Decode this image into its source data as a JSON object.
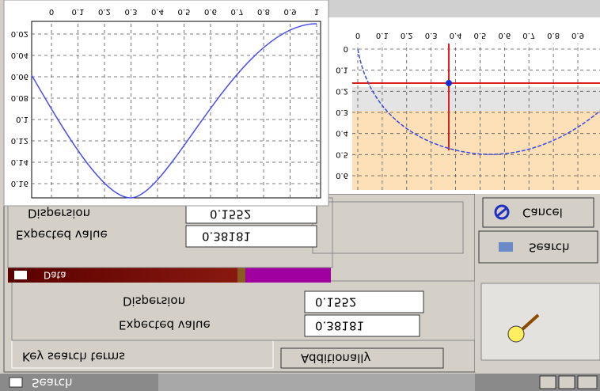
{
  "window_title": "Search",
  "tabs": [
    "Key search terms",
    "Additionally"
  ],
  "main_panel": {
    "expected_value_label": "Expected value",
    "expected_value": 0.38181,
    "dispersion_label": "Dispersion",
    "dispersion": 0.1552
  },
  "data_bar": {
    "label": "Data"
  },
  "results_panel": {
    "expected_value_label": "Expected value",
    "expected_value": 0.38181,
    "dispersion_label": "Dispersion",
    "dispersion": 0.1552
  },
  "buttons": {
    "cancel": "Cancel",
    "search": "Search"
  },
  "left_plot": {
    "xticks": [
      0,
      0.1,
      0.2,
      0.3,
      0.4,
      0.5,
      0.6,
      0.7,
      0.8,
      0.9,
      1
    ],
    "yticks": [
      0.02,
      0.04,
      0.06,
      0.08,
      0.1,
      0.12,
      0.14,
      0.16
    ]
  },
  "right_plot": {
    "xticks": [
      0,
      0.1,
      0.2,
      0.3,
      0.4,
      0.5,
      0.6,
      0.7,
      0.8,
      0.9
    ],
    "yticks": [
      0,
      0.1,
      0.2,
      0.3,
      0.4,
      0.5,
      0.6
    ]
  }
}
